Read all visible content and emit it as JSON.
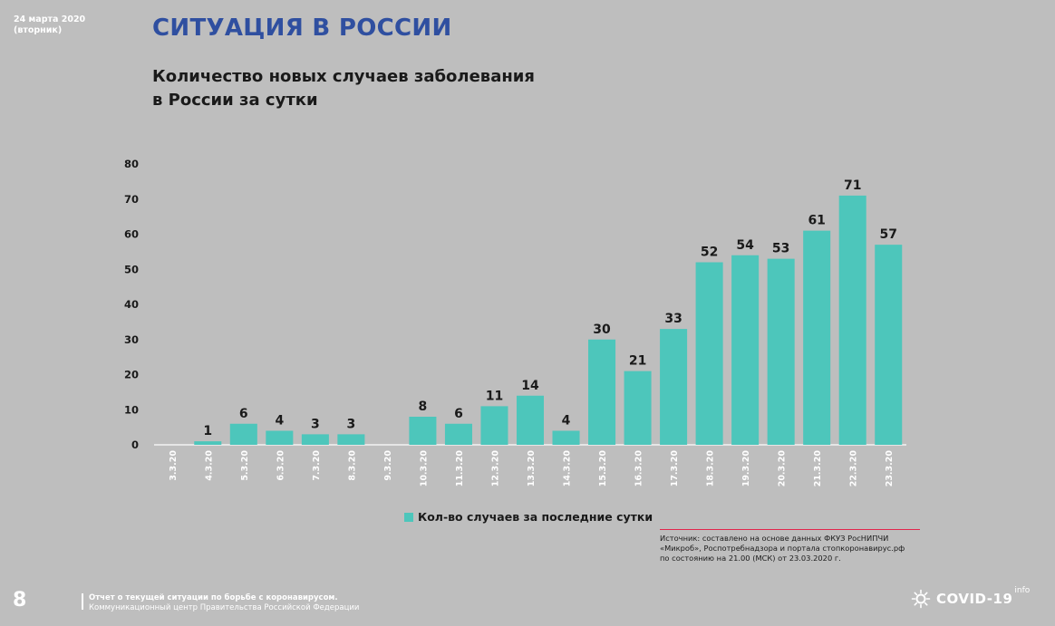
{
  "header": {
    "date_line1": "24 марта 2020",
    "date_line2": "(вторник)",
    "title": "СИТУАЦИЯ В РОССИИ",
    "subtitle_line1": "Количество новых случаев заболевания",
    "subtitle_line2": "в России за сутки"
  },
  "colors": {
    "background": "#bebebe",
    "bar": "#4dc6bb",
    "title": "#2f4fa0",
    "accent_line": "#e2264d"
  },
  "chart_data": {
    "type": "bar",
    "categories": [
      "3.3.20",
      "4.3.20",
      "5.3.20",
      "6.3.20",
      "7.3.20",
      "8.3.20",
      "9.3.20",
      "10.3.20",
      "11.3.20",
      "12.3.20",
      "13.3.20",
      "14.3.20",
      "15.3.20",
      "16.3.20",
      "17.3.20",
      "18.3.20",
      "19.3.20",
      "20.3.20",
      "21.3.20",
      "22.3.20",
      "23.3.20"
    ],
    "series": [
      {
        "name": "Кол-во случаев за последние сутки",
        "values": [
          0,
          1,
          6,
          4,
          3,
          3,
          0,
          8,
          6,
          11,
          14,
          4,
          30,
          21,
          33,
          52,
          54,
          53,
          61,
          71,
          57
        ],
        "labels": [
          "",
          "1",
          "6",
          "4",
          "3",
          "3",
          "",
          "8",
          "6",
          "11",
          "14",
          "4",
          "30",
          "21",
          "33",
          "52",
          "54",
          "53",
          "61",
          "71",
          "57"
        ]
      }
    ],
    "title": "Количество новых случаев заболевания в России за сутки",
    "xlabel": "",
    "ylabel": "",
    "ylim": [
      0,
      80
    ],
    "yticks": [
      0,
      10,
      20,
      30,
      40,
      50,
      60,
      70,
      80
    ],
    "grid": false,
    "legend": "bottom"
  },
  "legend": {
    "label": "Кол-во случаев за последние сутки"
  },
  "source": {
    "line1": "Источник: составлено на основе данных ФКУЗ РосНИПЧИ",
    "line2": "«Микроб», Роспотребнадзора и портала стопкоронавирус.рф",
    "line3": "по состоянию на 21.00 (МСК) от 23.03.2020 г."
  },
  "footer": {
    "page_number": "8",
    "line1": "Отчет о текущей ситуации по борьбе с коронавирусом.",
    "line2": "Коммуникационный центр Правительства Российской Федерации"
  },
  "logo": {
    "text": "COVID-19",
    "sup": "info",
    "icon": "sun-virus-icon"
  }
}
